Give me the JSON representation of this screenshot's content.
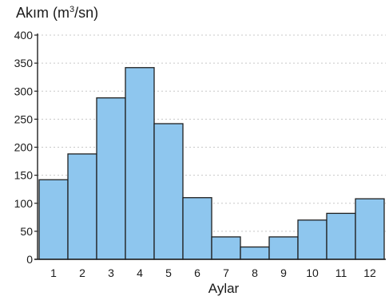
{
  "chart_data": {
    "type": "bar",
    "ylabel_prefix": "Akım (m",
    "ylabel_superscript": "3",
    "ylabel_suffix": "/sn)",
    "xlabel": "Aylar",
    "categories": [
      "1",
      "2",
      "3",
      "4",
      "5",
      "6",
      "7",
      "8",
      "9",
      "10",
      "11",
      "12"
    ],
    "values": [
      142,
      188,
      288,
      342,
      242,
      110,
      40,
      22,
      40,
      70,
      82,
      108
    ],
    "ylim": [
      0,
      400
    ],
    "yticks": [
      "0",
      "50",
      "100",
      "150",
      "200",
      "250",
      "300",
      "350",
      "400"
    ],
    "grid": true,
    "colors": {
      "bar_fill": "#8ec6ee",
      "bar_stroke": "#1f1f1f",
      "axis": "#1f1f1f",
      "grid": "#c8c8c8"
    }
  }
}
